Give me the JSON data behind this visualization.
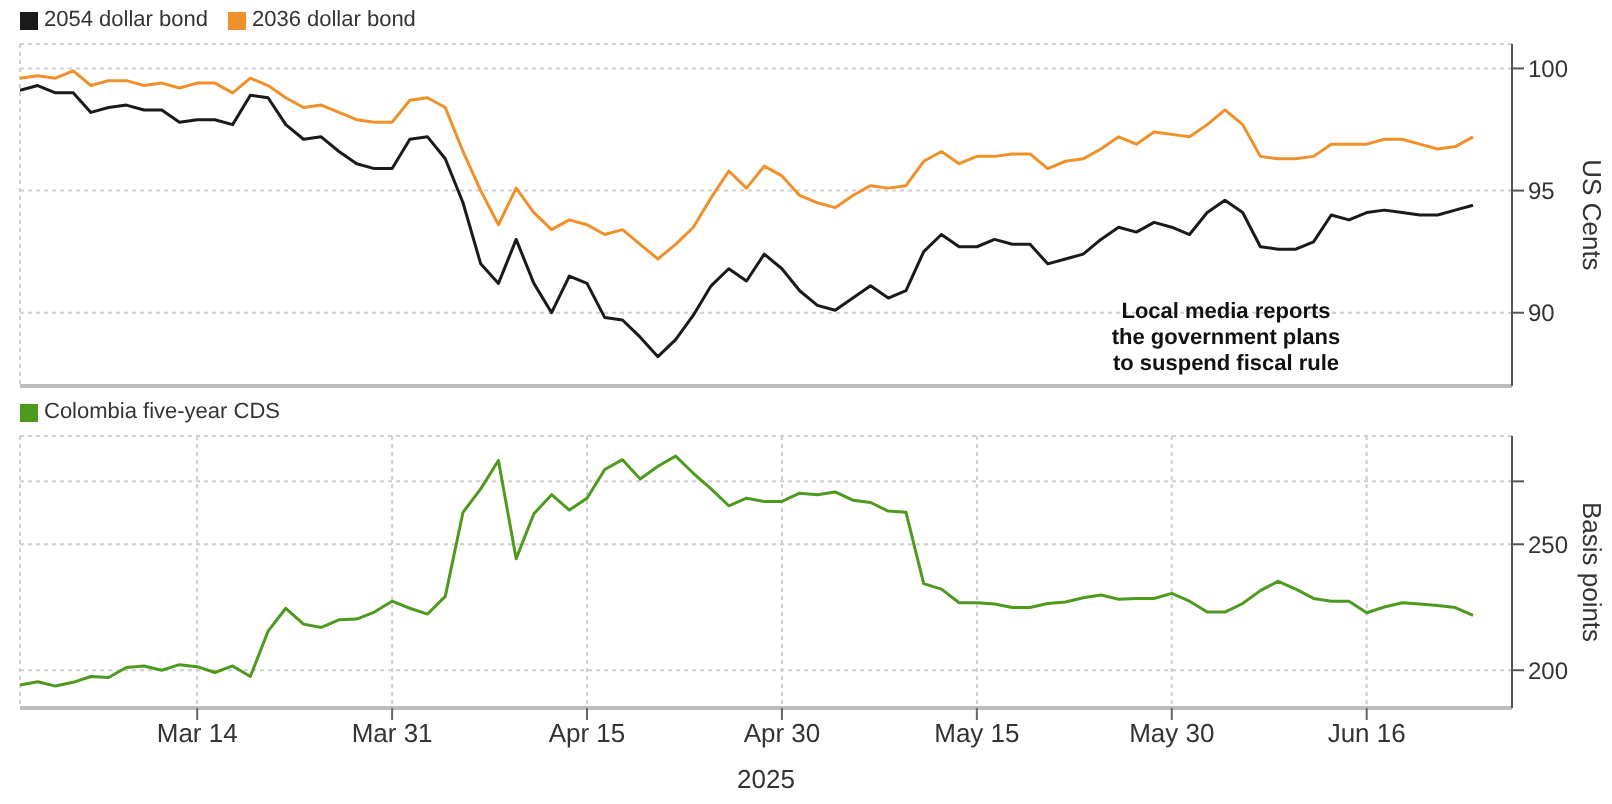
{
  "chart_data": [
    {
      "type": "line",
      "categories": [
        null,
        null,
        null,
        null,
        null,
        null,
        null,
        null,
        null,
        null,
        null,
        null,
        null,
        null,
        null,
        null,
        null,
        null,
        null,
        null,
        null,
        null,
        null,
        null,
        null,
        null,
        null,
        null,
        null,
        null,
        null,
        null,
        null,
        null,
        null,
        null,
        null,
        null,
        null,
        null,
        null,
        null,
        null,
        null,
        null,
        null,
        null,
        null,
        null,
        null,
        null,
        null,
        null,
        null,
        null,
        null,
        null,
        null,
        null,
        null,
        null,
        null,
        null,
        null,
        null,
        null,
        null,
        null,
        null,
        null,
        null,
        null,
        null,
        null,
        null,
        null,
        null,
        null,
        null,
        null,
        null,
        null,
        null
      ],
      "series": [
        {
          "name": "2054 dollar bond",
          "color": "#1a1a1a",
          "values": [
            99.1,
            99.3,
            99.0,
            99.0,
            98.2,
            98.4,
            98.5,
            98.3,
            98.3,
            97.8,
            97.9,
            97.9,
            97.7,
            98.9,
            98.8,
            97.7,
            97.1,
            97.2,
            96.6,
            96.1,
            95.9,
            95.9,
            97.1,
            97.2,
            96.3,
            94.5,
            92.0,
            91.2,
            93.0,
            91.2,
            90.0,
            91.5,
            91.2,
            89.8,
            89.7,
            89.0,
            88.2,
            88.9,
            89.9,
            91.1,
            91.8,
            91.3,
            92.4,
            91.8,
            90.9,
            90.3,
            90.1,
            90.6,
            91.1,
            90.6,
            90.9,
            92.5,
            93.2,
            92.7,
            92.7,
            93.0,
            92.8,
            92.8,
            92.0,
            92.2,
            92.4,
            93.0,
            93.5,
            93.3,
            93.7,
            93.5,
            93.2,
            94.1,
            94.6,
            94.1,
            92.7,
            92.6,
            92.6,
            92.9,
            94.0,
            93.8,
            94.1,
            94.2,
            94.1,
            94.0,
            94.0,
            94.2,
            94.4
          ]
        },
        {
          "name": "2036 dollar bond",
          "color": "#f0902a",
          "values": [
            99.6,
            99.7,
            99.6,
            99.9,
            99.3,
            99.5,
            99.5,
            99.3,
            99.4,
            99.2,
            99.4,
            99.4,
            99.0,
            99.6,
            99.3,
            98.8,
            98.4,
            98.5,
            98.2,
            97.9,
            97.8,
            97.8,
            98.7,
            98.8,
            98.4,
            96.6,
            95.0,
            93.6,
            95.1,
            94.1,
            93.4,
            93.8,
            93.6,
            93.2,
            93.4,
            92.8,
            92.2,
            92.8,
            93.5,
            94.7,
            95.8,
            95.1,
            96.0,
            95.6,
            94.8,
            94.5,
            94.3,
            94.8,
            95.2,
            95.1,
            95.2,
            96.2,
            96.6,
            96.1,
            96.4,
            96.4,
            96.5,
            96.5,
            95.9,
            96.2,
            96.3,
            96.7,
            97.2,
            96.9,
            97.4,
            97.3,
            97.2,
            97.7,
            98.3,
            97.7,
            96.4,
            96.3,
            96.3,
            96.4,
            96.9,
            96.9,
            96.9,
            97.1,
            97.1,
            96.9,
            96.7,
            96.8,
            97.2
          ]
        }
      ],
      "ylim": [
        87,
        101
      ],
      "yticks": [
        90,
        95,
        100
      ],
      "ylabel": "US Cents",
      "grid": true,
      "legend": "top left",
      "tick_labels": "y",
      "annotations": [
        "Local media reports the government plans to suspend fiscal rule"
      ]
    },
    {
      "type": "line",
      "categories": [
        null,
        null,
        null,
        null,
        null,
        null,
        null,
        null,
        null,
        null,
        "Mar 14",
        null,
        null,
        null,
        null,
        null,
        null,
        null,
        null,
        null,
        null,
        "Mar 31",
        null,
        null,
        null,
        null,
        null,
        null,
        null,
        null,
        null,
        null,
        "Apr 15",
        null,
        null,
        null,
        null,
        null,
        null,
        null,
        null,
        null,
        null,
        "Apr 30",
        null,
        null,
        null,
        null,
        null,
        null,
        null,
        null,
        null,
        null,
        "May 15",
        null,
        null,
        null,
        null,
        null,
        null,
        null,
        null,
        null,
        null,
        "May 30",
        null,
        null,
        null,
        null,
        null,
        null,
        null,
        null,
        null,
        null,
        "Jun 16",
        null,
        null,
        null,
        null,
        null,
        null
      ],
      "series": [
        {
          "name": "Colombia five-year CDS",
          "color": "#4e9a1e",
          "values": [
            194.1,
            195.4,
            193.7,
            195.2,
            197.5,
            197.1,
            201.1,
            201.7,
            200.0,
            202.2,
            201.4,
            199.1,
            201.7,
            197.5,
            215.5,
            224.6,
            218.3,
            217.0,
            220.0,
            220.3,
            223.1,
            227.4,
            224.6,
            222.3,
            229.3,
            262.7,
            272.0,
            283.3,
            244.3,
            262.1,
            269.7,
            263.6,
            268.3,
            279.7,
            283.6,
            275.9,
            281.0,
            285.0,
            278.2,
            272.0,
            265.3,
            268.3,
            267.0,
            267.0,
            270.3,
            269.7,
            270.8,
            267.5,
            266.6,
            263.2,
            262.7,
            234.4,
            232.2,
            226.8,
            226.8,
            226.3,
            224.9,
            224.9,
            226.5,
            227.1,
            228.8,
            229.9,
            228.2,
            228.5,
            228.5,
            230.5,
            227.4,
            223.1,
            223.1,
            226.5,
            231.6,
            235.3,
            232.2,
            228.5,
            227.4,
            227.4,
            222.8,
            225.1,
            226.8,
            226.3,
            225.7,
            224.9,
            221.8
          ]
        }
      ],
      "ylim": [
        185,
        293
      ],
      "yticks": [
        {
          "value": 275,
          "label": null
        },
        250,
        200
      ],
      "ylabel": "Basis points",
      "xlabel": "2025",
      "grid": true,
      "legend": "top left"
    }
  ]
}
